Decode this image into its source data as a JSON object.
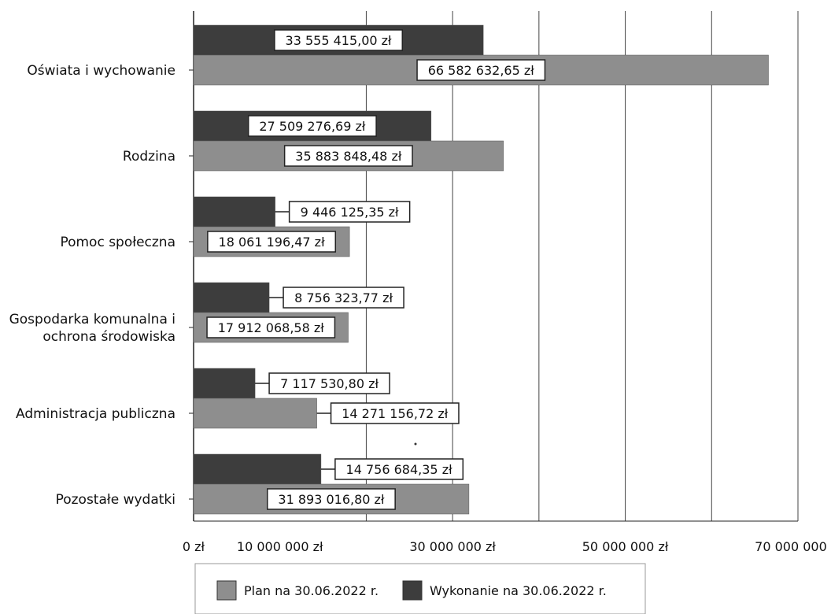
{
  "colors": {
    "plan": "#8e8e8e",
    "wykonanie": "#3d3d3d",
    "grid": "#444444",
    "label_border": "#222222"
  },
  "chart_data": {
    "type": "bar",
    "orientation": "horizontal",
    "title": "",
    "xlabel": "",
    "ylabel": "",
    "categories": [
      "Oświata i wychowanie",
      "Rodzina",
      "Pomoc społeczna",
      "Gospodarka komunalna i ochrona środowiska",
      "Administracja publiczna",
      "Pozostałe wydatki"
    ],
    "category_lines": [
      [
        "Oświata i wychowanie"
      ],
      [
        "Rodzina"
      ],
      [
        "Pomoc społeczna"
      ],
      [
        "Gospodarka komunalna i",
        "ochrona środowiska"
      ],
      [
        "Administracja publiczna"
      ],
      [
        "Pozostałe wydatki"
      ]
    ],
    "series": [
      {
        "name": "Wykonanie na 30.06.2022 r.",
        "values": [
          33555415.0,
          27509276.69,
          9446125.35,
          8756323.77,
          7117530.8,
          14756684.35
        ],
        "labels": [
          "33 555 415,00 zł",
          "27 509 276,69 zł",
          "9 446 125,35 zł",
          "8 756 323,77 zł",
          "7 117 530,80 zł",
          "14 756 684,35 zł"
        ]
      },
      {
        "name": "Plan na 30.06.2022 r.",
        "values": [
          66582632.65,
          35883848.48,
          18061196.47,
          17912068.58,
          14271156.72,
          31893016.8
        ],
        "labels": [
          "66 582 632,65 zł",
          "35 883 848,48 zł",
          "18 061 196,47 zł",
          "17 912 068,58 zł",
          "14 271 156,72 zł",
          "31 893 016,80 zł"
        ]
      }
    ],
    "xlim": [
      0,
      70000000
    ],
    "x_ticks": [
      0,
      10000000,
      30000000,
      50000000,
      70000000
    ],
    "x_tick_labels": [
      "0 zł",
      "10 000 000 zł",
      "30 000 000 zł",
      "50 000 000 zł",
      "70 000 000 zł"
    ],
    "gridlines_at": [
      20000000,
      30000000,
      40000000,
      50000000,
      60000000,
      70000000
    ],
    "grid": true,
    "legend": {
      "placement": "bottom",
      "entries": [
        "Plan na 30.06.2022 r.",
        "Wykonanie na 30.06.2022 r."
      ]
    }
  }
}
